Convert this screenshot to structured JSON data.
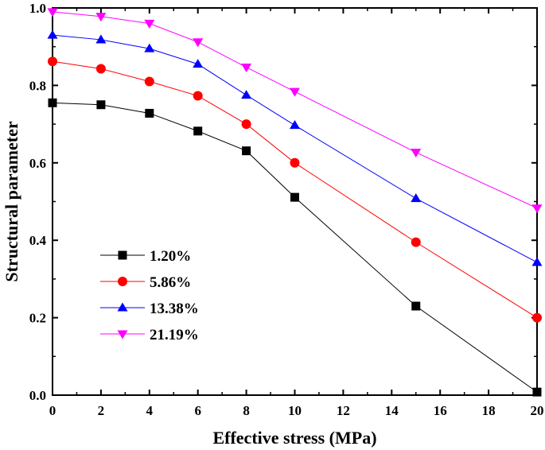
{
  "chart_data": {
    "type": "line",
    "title": "",
    "xlabel": "Effective stress (MPa)",
    "ylabel": "Structural parameter",
    "xlim": [
      0,
      20
    ],
    "ylim": [
      0.0,
      1.0
    ],
    "xticks": [
      0,
      2,
      4,
      6,
      8,
      10,
      12,
      14,
      16,
      18,
      20
    ],
    "xtick_labels": [
      "0",
      "2",
      "4",
      "6",
      "8",
      "10",
      "12",
      "14",
      "16",
      "18",
      "20"
    ],
    "yticks": [
      0.0,
      0.2,
      0.4,
      0.6,
      0.8,
      1.0
    ],
    "ytick_labels": [
      "0.0",
      "0.2",
      "0.4",
      "0.6",
      "0.8",
      "1.0"
    ],
    "grid": false,
    "legend_position": "center-left",
    "x": [
      0,
      2,
      4,
      6,
      8,
      10,
      15,
      20
    ],
    "series": [
      {
        "name": "1.20%",
        "marker": "square",
        "color": "#000000",
        "values": [
          0.755,
          0.75,
          0.728,
          0.682,
          0.631,
          0.511,
          0.23,
          0.008
        ]
      },
      {
        "name": "5.86%",
        "marker": "circle",
        "color": "#ff0000",
        "values": [
          0.862,
          0.843,
          0.81,
          0.773,
          0.7,
          0.6,
          0.395,
          0.2
        ]
      },
      {
        "name": "13.38%",
        "marker": "triangle-up",
        "color": "#0000ff",
        "values": [
          0.93,
          0.918,
          0.895,
          0.855,
          0.775,
          0.697,
          0.508,
          0.343
        ]
      },
      {
        "name": "21.19%",
        "marker": "triangle-down",
        "color": "#ff00ff",
        "values": [
          0.99,
          0.978,
          0.96,
          0.912,
          0.847,
          0.784,
          0.627,
          0.483
        ]
      }
    ]
  }
}
